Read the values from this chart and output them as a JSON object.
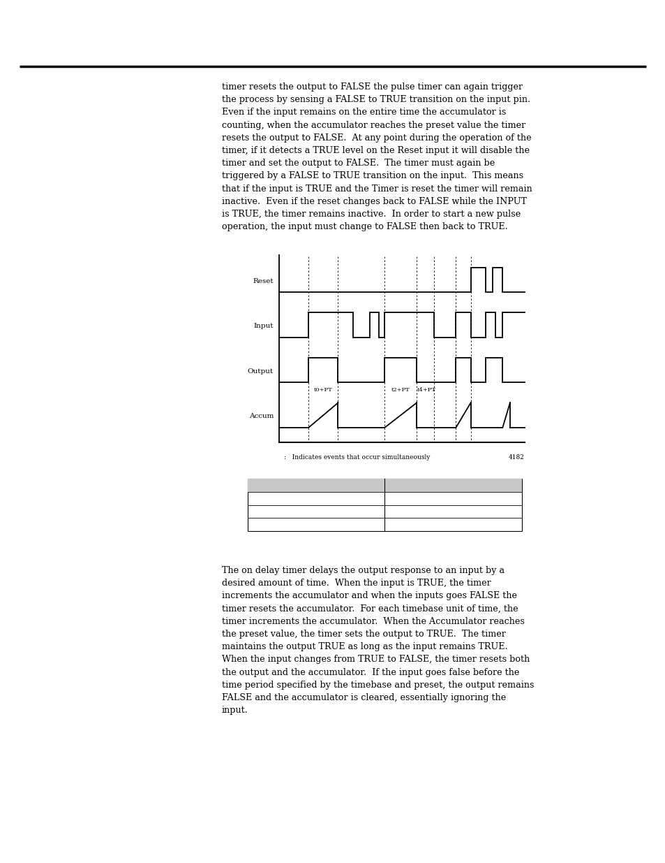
{
  "page_bg": "#ffffff",
  "top_text": "timer resets the output to FALSE the pulse timer can again trigger\nthe process by sensing a FALSE to TRUE transition on the input pin.\nEven if the input remains on the entire time the accumulator is\ncounting, when the accumulator reaches the preset value the timer\nresets the output to FALSE.  At any point during the operation of the\ntimer, if it detects a TRUE level on the Reset input it will disable the\ntimer and set the output to FALSE.  The timer must again be\ntriggered by a FALSE to TRUE transition on the input.  This means\nthat if the input is TRUE and the Timer is reset the timer will remain\ninactive.  Even if the reset changes back to FALSE while the INPUT\nis TRUE, the timer remains inactive.  In order to start a new pulse\noperation, the input must change to FALSE then back to TRUE.",
  "bottom_text": "The on delay timer delays the output response to an input by a\ndesired amount of time.  When the input is TRUE, the timer\nincrements the accumulator and when the inputs goes FALSE the\ntimer resets the accumulator.  For each timebase unit of time, the\ntimer increments the accumulator.  When the Accumulator reaches\nthe preset value, the timer sets the output to TRUE.  The timer\nmaintains the output TRUE as long as the input remains TRUE.\nWhen the input changes from TRUE to FALSE, the timer resets both\nthe output and the accumulator.  If the input goes false before the\ntime period specified by the timebase and preset, the output remains\nFALSE and the accumulator is cleared, essentially ignoring the\ninput.",
  "note_text": ":   Indicates events that occur simultaneously",
  "figure_num": "4182"
}
